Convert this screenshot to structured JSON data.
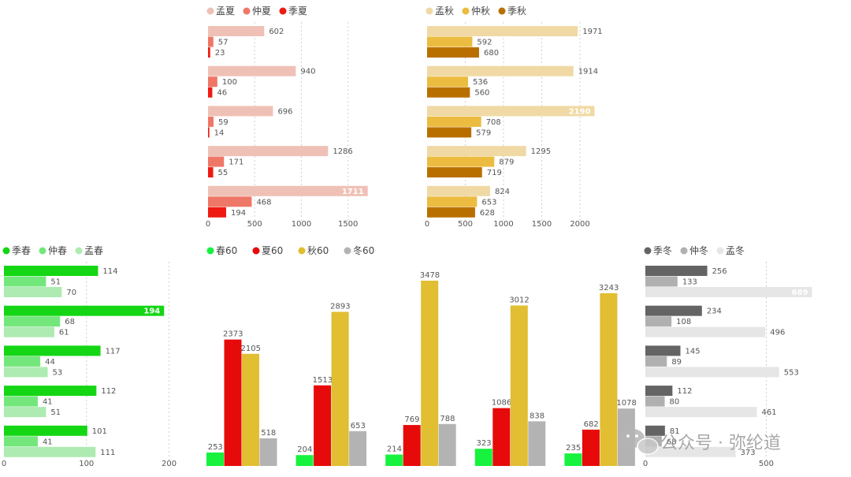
{
  "chart_data": [
    {
      "id": "summer",
      "type": "bar",
      "orientation": "horizontal",
      "series": [
        {
          "name": "孟夏",
          "color": "#efc1b6",
          "values": [
            602,
            940,
            696,
            1286,
            1711
          ]
        },
        {
          "name": "仲夏",
          "color": "#ef7767",
          "values": [
            57,
            100,
            59,
            171,
            468
          ]
        },
        {
          "name": "季夏",
          "color": "#ee1a12",
          "values": [
            23,
            46,
            14,
            55,
            194
          ]
        }
      ],
      "xlim": [
        0,
        1950
      ],
      "xticks": [
        "0",
        "500",
        "1000",
        "1500"
      ],
      "grid": true,
      "legend_position": "top-left"
    },
    {
      "id": "autumn",
      "type": "bar",
      "orientation": "horizontal",
      "series": [
        {
          "name": "孟秋",
          "color": "#f0d9a4",
          "values": [
            1971,
            1914,
            2190,
            1295,
            824
          ]
        },
        {
          "name": "仲秋",
          "color": "#ecbc40",
          "values": [
            592,
            536,
            708,
            879,
            653
          ]
        },
        {
          "name": "季秋",
          "color": "#b96f00",
          "values": [
            680,
            560,
            579,
            719,
            628
          ]
        }
      ],
      "xlim": [
        0,
        2350
      ],
      "xticks": [
        "0",
        "500",
        "1000",
        "1500",
        "2000"
      ],
      "grid": true,
      "legend_position": "top-left"
    },
    {
      "id": "spring",
      "type": "bar",
      "orientation": "horizontal",
      "series": [
        {
          "name": "季春",
          "color": "#14d614",
          "values": [
            114,
            194,
            117,
            112,
            101
          ]
        },
        {
          "name": "仲春",
          "color": "#74e77c",
          "values": [
            51,
            68,
            44,
            41,
            41
          ]
        },
        {
          "name": "孟春",
          "color": "#aeebb2",
          "values": [
            70,
            61,
            53,
            51,
            111
          ]
        }
      ],
      "xlim": [
        0,
        210
      ],
      "xticks": [
        "0",
        "100",
        "200"
      ],
      "grid": true,
      "legend_position": "top-left"
    },
    {
      "id": "season60",
      "type": "bar",
      "orientation": "vertical",
      "categories": [
        "",
        "",
        "",
        "",
        ""
      ],
      "series": [
        {
          "name": "春60",
          "color": "#16f23e",
          "values": [
            253,
            204,
            214,
            323,
            235
          ]
        },
        {
          "name": "夏60",
          "color": "#e70a0a",
          "values": [
            2373,
            1513,
            769,
            1086,
            682
          ]
        },
        {
          "name": "秋60",
          "color": "#e1be32",
          "values": [
            2105,
            2893,
            3478,
            3012,
            3243
          ]
        },
        {
          "name": "冬60",
          "color": "#b3b3b3",
          "values": [
            518,
            653,
            788,
            838,
            1078
          ]
        }
      ],
      "ylim": [
        0,
        3650
      ],
      "grid": false,
      "legend_position": "top-left"
    },
    {
      "id": "winter",
      "type": "bar",
      "orientation": "horizontal",
      "series": [
        {
          "name": "季冬",
          "color": "#646464",
          "values": [
            256,
            234,
            145,
            112,
            81
          ]
        },
        {
          "name": "仲冬",
          "color": "#b0b0b0",
          "values": [
            133,
            108,
            89,
            80,
            68
          ]
        },
        {
          "name": "孟冬",
          "color": "#e6e6e6",
          "values": [
            689,
            496,
            553,
            461,
            373
          ]
        }
      ],
      "xlim": [
        0,
        720
      ],
      "xticks": [
        "0",
        "500"
      ],
      "grid": true,
      "legend_position": "top-left"
    }
  ],
  "watermark": {
    "icon": "wechat-icon",
    "text": "公众号 · 弥纶道"
  }
}
